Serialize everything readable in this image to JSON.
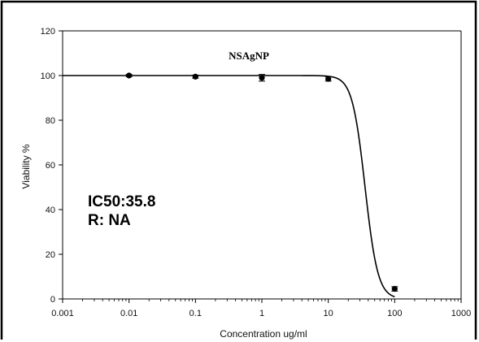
{
  "chart_data": {
    "type": "scatter",
    "title": "NSAgNP",
    "xlabel": "Concentration ug/ml",
    "ylabel": "Viability %",
    "xscale": "log",
    "xlim": [
      0.001,
      1000
    ],
    "ylim": [
      0,
      120
    ],
    "x_ticks": [
      "0.001",
      "0.01",
      "0.1",
      "1",
      "10",
      "100",
      "1000"
    ],
    "y_ticks": [
      "0",
      "20",
      "40",
      "60",
      "80",
      "100",
      "120"
    ],
    "grid": false,
    "series": [
      {
        "points": [
          {
            "x": 0.01,
            "y": 100,
            "err": 0.5
          },
          {
            "x": 0.1,
            "y": 99.5,
            "err": 0.7
          },
          {
            "x": 1,
            "y": 99,
            "err": 1.5
          },
          {
            "x": 10,
            "y": 98.5,
            "err": 1
          },
          {
            "x": 100,
            "y": 4.5,
            "err": 1
          }
        ],
        "fit": {
          "model": "sigmoid",
          "top": 100,
          "bottom": 0,
          "ic50": 35.8,
          "hill": 4.5
        }
      }
    ],
    "annotations": [
      "IC50:35.8",
      "R: NA"
    ],
    "colors": {
      "marker": "#000000",
      "line": "#000000",
      "axis": "#000000"
    }
  }
}
